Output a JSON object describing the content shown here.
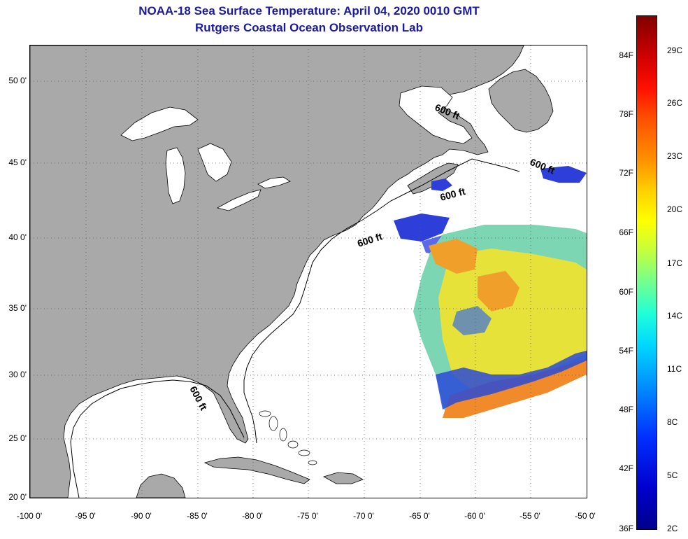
{
  "header": {
    "title_line1": "NOAA-18 Sea Surface Temperature:  April 04, 2020 0010 GMT",
    "title_line2": "Rutgers Coastal Ocean Observation Lab"
  },
  "axes": {
    "latitude_labels": [
      "50 0'",
      "45 0'",
      "40 0'",
      "35 0'",
      "30 0'",
      "25 0'",
      "20 0'"
    ],
    "longitude_labels": [
      "-100 0'",
      "-95 0'",
      "-90 0'",
      "-85 0'",
      "-80 0'",
      "-75 0'",
      "-70 0'",
      "-65 0'",
      "-60 0'",
      "-55 0'",
      "-50 0'"
    ]
  },
  "depth_contour_labels": [
    "600 ft",
    "600 ft",
    "600 ft",
    "600 ft",
    "600 ft"
  ],
  "colorbar": {
    "fahrenheit_labels": [
      "84F",
      "78F",
      "72F",
      "66F",
      "60F",
      "54F",
      "48F",
      "42F",
      "36F"
    ],
    "celsius_labels": [
      "29C",
      "26C",
      "23C",
      "20C",
      "17C",
      "14C",
      "11C",
      "8C",
      "5C",
      "2C"
    ]
  },
  "colors": {
    "land": "#a9a9a9",
    "ocean": "#ffffff",
    "title": "#1a1aa0"
  }
}
